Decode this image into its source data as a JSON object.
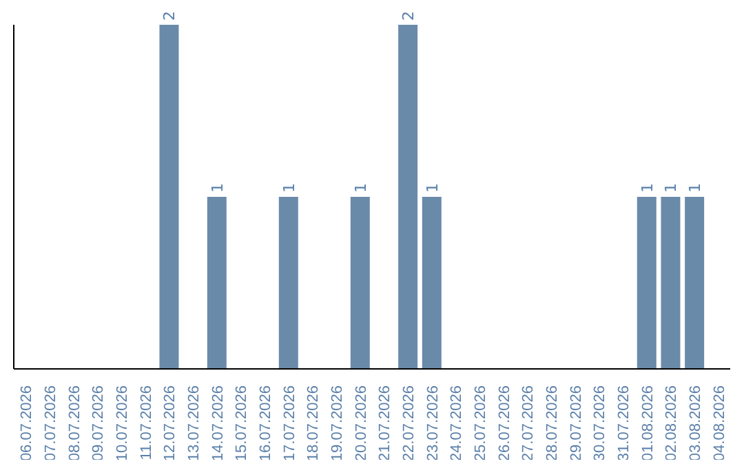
{
  "chart_data": {
    "type": "bar",
    "categories": [
      "06.07.2026",
      "07.07.2026",
      "08.07.2026",
      "09.07.2026",
      "10.07.2026",
      "11.07.2026",
      "12.07.2026",
      "13.07.2026",
      "14.07.2026",
      "15.07.2026",
      "16.07.2026",
      "17.07.2026",
      "18.07.2026",
      "19.07.2026",
      "20.07.2026",
      "21.07.2026",
      "22.07.2026",
      "23.07.2026",
      "24.07.2026",
      "25.07.2026",
      "26.07.2026",
      "27.07.2026",
      "28.07.2026",
      "29.07.2026",
      "30.07.2026",
      "31.07.2026",
      "01.08.2026",
      "02.08.2026",
      "03.08.2026",
      "04.08.2026"
    ],
    "values": [
      0,
      0,
      0,
      0,
      0,
      0,
      2,
      0,
      1,
      0,
      0,
      1,
      0,
      0,
      1,
      0,
      2,
      1,
      0,
      0,
      0,
      0,
      0,
      0,
      0,
      0,
      1,
      1,
      1,
      0
    ],
    "value_labels": [
      null,
      null,
      null,
      null,
      null,
      null,
      "2",
      null,
      "1",
      null,
      null,
      "1",
      null,
      null,
      "1",
      null,
      "2",
      "1",
      null,
      null,
      null,
      null,
      null,
      null,
      null,
      null,
      "1",
      "1",
      "1",
      null
    ],
    "color": "#6a8aaa",
    "grid": false,
    "legend": false,
    "tick_labels": "x"
  }
}
